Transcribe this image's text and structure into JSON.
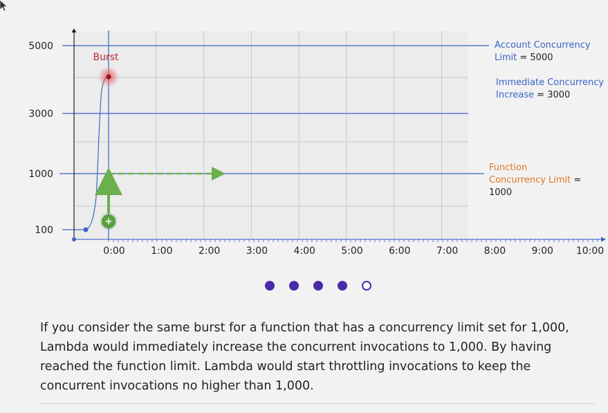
{
  "chart_data": {
    "type": "line",
    "y_ticks": [
      "5000",
      "3000",
      "1000",
      "100"
    ],
    "x_ticks": [
      "0:00",
      "1:00",
      "2:00",
      "3:00",
      "4:00",
      "5:00",
      "6:00",
      "7:00",
      "8:00",
      "9:00",
      "10:00"
    ],
    "burst_label": "Burst",
    "levels": {
      "account_limit": 5000,
      "immediate_increase": 3000,
      "function_limit": 1000,
      "baseline": 100
    },
    "notes": {
      "account": {
        "label": "Account Concurrency Limit",
        "eq": " = ",
        "value": "5000"
      },
      "increase": {
        "label": "Immediate Concurrency Increase",
        "eq": " = ",
        "value": "3000"
      },
      "function": {
        "label": "Function Concurrency Limit",
        "eq": " = ",
        "value": "1000"
      }
    },
    "colors": {
      "limit_line": "#3a63c8",
      "grid": "#c8c8c8",
      "burst": "#c0282d",
      "function_arrow": "#6ab04c",
      "function_label": "#e0772a"
    }
  },
  "pager": {
    "total": 5,
    "current": 5
  },
  "caption": {
    "text": "If you consider the same burst for a function that has a concurrency limit set for 1,000, Lambda would immediately increase the concurrent invocations to 1,000. By having reached the function limit. Lambda would start throttling invocations to keep the concurrent invocations no higher than 1,000."
  },
  "icons": {
    "cursor": "cursor-arrow-icon",
    "plus_marker": "plus-circle-icon"
  }
}
